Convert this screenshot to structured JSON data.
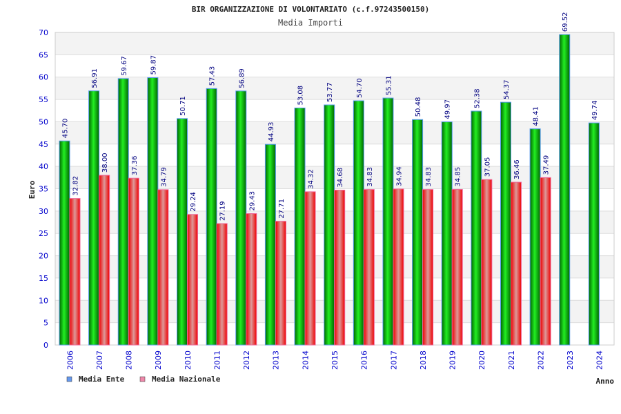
{
  "chart_data": {
    "type": "bar",
    "title": "BIR ORGANIZZAZIONE DI VOLONTARIATO (c.f.97243500150)",
    "subtitle": "Media Importi",
    "xlabel": "Anno",
    "ylabel": "Euro",
    "ylim": [
      0,
      70
    ],
    "yticks": [
      0,
      5,
      10,
      15,
      20,
      25,
      30,
      35,
      40,
      45,
      50,
      55,
      60,
      65,
      70
    ],
    "grid": true,
    "legend_position": "bottom-left",
    "categories": [
      "2006",
      "2007",
      "2008",
      "2009",
      "2010",
      "2011",
      "2012",
      "2013",
      "2014",
      "2015",
      "2016",
      "2017",
      "2018",
      "2019",
      "2020",
      "2021",
      "2022",
      "2023",
      "2024"
    ],
    "series": [
      {
        "name": "Media Ente",
        "color": "#00aa00",
        "legend_color": "#6699ee",
        "values": [
          45.7,
          56.91,
          59.67,
          59.87,
          50.71,
          57.43,
          56.89,
          44.93,
          53.08,
          53.77,
          54.7,
          55.31,
          50.48,
          49.97,
          52.38,
          54.37,
          48.41,
          69.52,
          49.74
        ],
        "labels": [
          "45.70",
          "56.91",
          "59.67",
          "59.87",
          "50.71",
          "57.43",
          "56.89",
          "44.93",
          "53.08",
          "53.77",
          "54.70",
          "55.31",
          "50.48",
          "49.97",
          "52.38",
          "54.37",
          "48.41",
          "69.52",
          "49.74"
        ]
      },
      {
        "name": "Media Nazionale",
        "color": "#ee2222",
        "legend_color": "#ee88aa",
        "values": [
          32.82,
          38.0,
          37.36,
          34.79,
          29.24,
          27.19,
          29.43,
          27.71,
          34.32,
          34.68,
          34.83,
          34.94,
          34.83,
          34.85,
          37.05,
          36.46,
          37.49,
          null,
          null
        ],
        "labels": [
          "32.82",
          "38.00",
          "37.36",
          "34.79",
          "29.24",
          "27.19",
          "29.43",
          "27.71",
          "34.32",
          "34.68",
          "34.83",
          "34.94",
          "34.83",
          "34.85",
          "37.05",
          "36.46",
          "37.49",
          null,
          null
        ]
      }
    ]
  }
}
